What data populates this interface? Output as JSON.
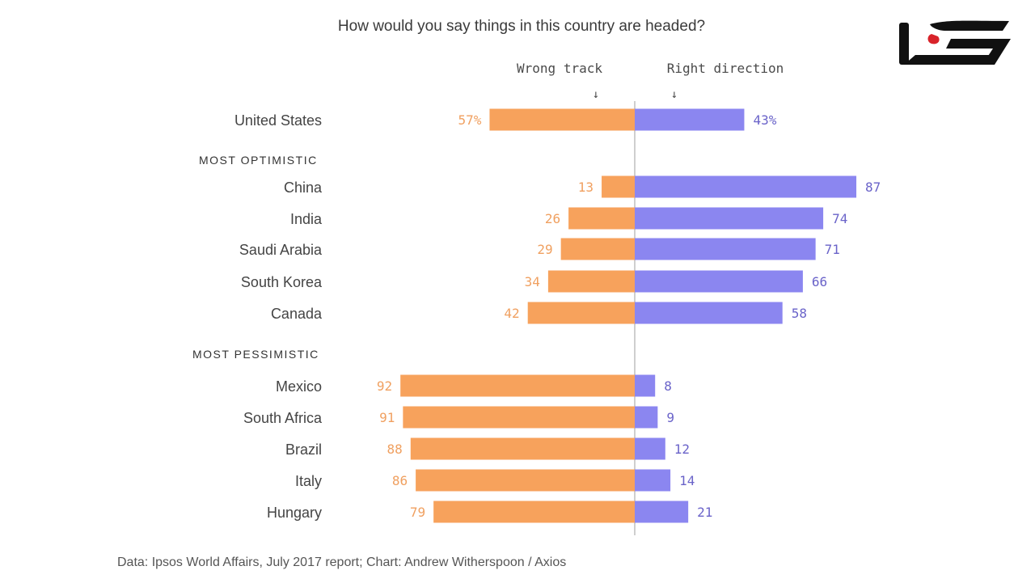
{
  "chart_data": {
    "type": "bar",
    "title": "How would you say things in this country are headed?",
    "legend": {
      "left_label": "Wrong track",
      "right_label": "Right direction",
      "arrow_glyph": "↓"
    },
    "colors": {
      "wrong_track": "#f7a25c",
      "right_direction": "#8b86f0",
      "axis_line": "#bfbfbf"
    },
    "groups": [
      {
        "heading": "",
        "rows": [
          {
            "country": "United States",
            "wrong": 57,
            "right": 43,
            "wrong_label": "57%",
            "right_label": "43%"
          }
        ]
      },
      {
        "heading": "MOST OPTIMISTIC",
        "rows": [
          {
            "country": "China",
            "wrong": 13,
            "right": 87,
            "wrong_label": "13",
            "right_label": "87"
          },
          {
            "country": "India",
            "wrong": 26,
            "right": 74,
            "wrong_label": "26",
            "right_label": "74"
          },
          {
            "country": "Saudi Arabia",
            "wrong": 29,
            "right": 71,
            "wrong_label": "29",
            "right_label": "71"
          },
          {
            "country": "South Korea",
            "wrong": 34,
            "right": 66,
            "wrong_label": "34",
            "right_label": "66"
          },
          {
            "country": "Canada",
            "wrong": 42,
            "right": 58,
            "wrong_label": "42",
            "right_label": "58"
          }
        ]
      },
      {
        "heading": "MOST PESSIMISTIC",
        "rows": [
          {
            "country": "Mexico",
            "wrong": 92,
            "right": 8,
            "wrong_label": "92",
            "right_label": "8"
          },
          {
            "country": "South Africa",
            "wrong": 91,
            "right": 9,
            "wrong_label": "91",
            "right_label": "9"
          },
          {
            "country": "Brazil",
            "wrong": 88,
            "right": 12,
            "wrong_label": "88",
            "right_label": "12"
          },
          {
            "country": "Italy",
            "wrong": 86,
            "right": 14,
            "wrong_label": "86",
            "right_label": "14"
          },
          {
            "country": "Hungary",
            "wrong": 79,
            "right": 21,
            "wrong_label": "79",
            "right_label": "21"
          }
        ]
      }
    ],
    "source": "Data: Ipsos World Affairs, July 2017 report; Chart: Andrew Witherspoon / Axios"
  },
  "logo": {
    "text": "ﻟﺴﻨ",
    "color": "#111111",
    "accent_color": "#d8232a",
    "icon": "brand-logo"
  }
}
